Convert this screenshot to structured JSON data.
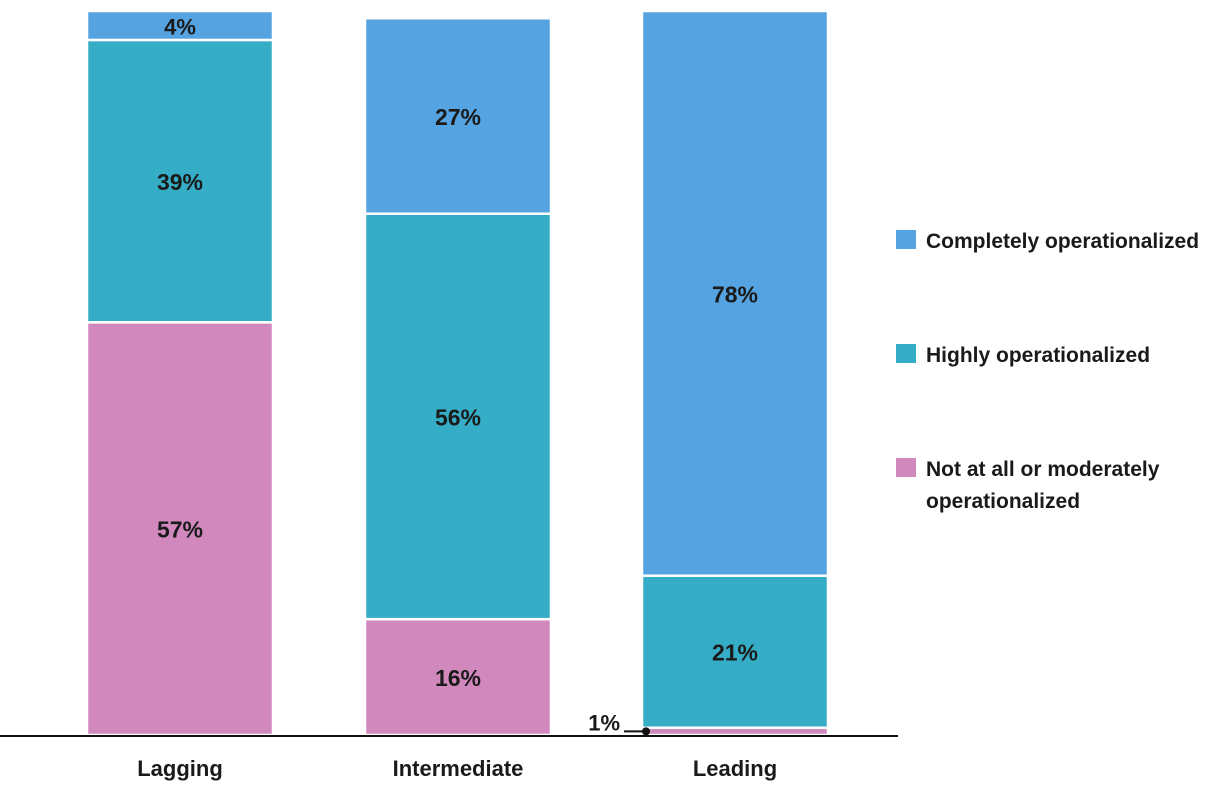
{
  "chart_data": {
    "type": "bar",
    "stacked": true,
    "categories": [
      "Lagging",
      "Intermediate",
      "Leading"
    ],
    "series": [
      {
        "name": "Not at all or moderately operationalized",
        "values": [
          57,
          16,
          1
        ],
        "color": "#D088BD"
      },
      {
        "name": "Highly operationalized",
        "values": [
          39,
          56,
          21
        ],
        "color": "#35ADC6"
      },
      {
        "name": "Completely operationalized",
        "values": [
          4,
          27,
          78
        ],
        "color": "#55A3E0"
      }
    ],
    "data_labels": [
      [
        "57%",
        "16%",
        "1%"
      ],
      [
        "39%",
        "56%",
        "21%"
      ],
      [
        "4%",
        "27%",
        "78%"
      ]
    ],
    "ylim": [
      0,
      100
    ],
    "unit": "%",
    "grid": false,
    "legend_position": "right",
    "legend": [
      {
        "label": "Completely operationalized",
        "color": "#55A3E0"
      },
      {
        "label": "Highly operationalized",
        "color": "#35ADC6"
      },
      {
        "label": "Not at all or moderately operationalized",
        "color": "#D088BD"
      }
    ]
  }
}
